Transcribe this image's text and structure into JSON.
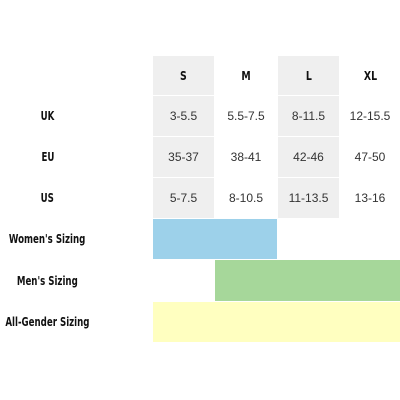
{
  "columns": [
    "S",
    "M",
    "L",
    "XL"
  ],
  "rows": [
    {
      "label": "UK",
      "values": [
        "3-5.5",
        "5.5-7.5",
        "8-11.5",
        "12-15.5"
      ]
    },
    {
      "label": "EU",
      "values": [
        "35-37",
        "38-41",
        "42-46",
        "47-50"
      ]
    },
    {
      "label": "US",
      "values": [
        "5-7.5",
        "8-10.5",
        "11-13.5",
        "13-16"
      ]
    }
  ],
  "bands": [
    {
      "label": "Women's Sizing",
      "color": "#9dd1ea",
      "covers": [
        "S",
        "M"
      ]
    },
    {
      "label": "Men's Sizing",
      "color": "#a6d79a",
      "covers": [
        "M",
        "L",
        "XL"
      ]
    },
    {
      "label": "All-Gender Sizing",
      "color": "#ffffc0",
      "covers": [
        "S",
        "M",
        "L",
        "XL"
      ]
    }
  ]
}
